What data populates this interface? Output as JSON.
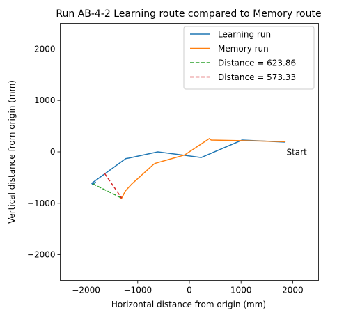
{
  "chart_data": {
    "type": "line",
    "title": "Run AB-4-2 Learning route compared to Memory route",
    "xlabel": "Horizontal distance from origin (mm)",
    "ylabel": "Vertical distance from origin (mm)",
    "xlim": [
      -2500,
      2500
    ],
    "ylim": [
      -2500,
      2500
    ],
    "xticks": [
      -2000,
      -1000,
      0,
      1000,
      2000
    ],
    "yticks": [
      -2000,
      -1000,
      0,
      1000,
      2000
    ],
    "xtick_labels": [
      "−2000",
      "−1000",
      "0",
      "1000",
      "2000"
    ],
    "ytick_labels": [
      "−2000",
      "−1000",
      "0",
      "1000",
      "2000"
    ],
    "grid": false,
    "legend_position": "top-right",
    "series": [
      {
        "name": "Learning run",
        "color": "#1f77b4",
        "style": "solid",
        "x": [
          1850,
          1020,
          230,
          -610,
          -1170,
          -1230,
          -1890,
          -1870,
          -1820
        ],
        "y": [
          190,
          230,
          -110,
          0,
          -120,
          -130,
          -610,
          -640,
          -590
        ]
      },
      {
        "name": "Memory run",
        "color": "#ff7f0e",
        "style": "solid",
        "x": [
          1850,
          420,
          390,
          -90,
          -650,
          -690,
          -1110,
          -1240,
          -1280,
          -1310,
          -1340,
          -1310
        ],
        "y": [
          200,
          230,
          260,
          -60,
          -220,
          -240,
          -620,
          -760,
          -840,
          -900,
          -900,
          -880
        ]
      },
      {
        "name": "Distance = 623.86",
        "color": "#2ca02c",
        "style": "dashed",
        "x": [
          -1870,
          -1310
        ],
        "y": [
          -620,
          -900
        ]
      },
      {
        "name": "Distance = 573.33",
        "color": "#d62728",
        "style": "dashed",
        "x": [
          -1640,
          -1310
        ],
        "y": [
          -420,
          -900
        ]
      }
    ],
    "annotations": [
      {
        "text": "Start",
        "x": 1880,
        "y": 10
      }
    ]
  }
}
